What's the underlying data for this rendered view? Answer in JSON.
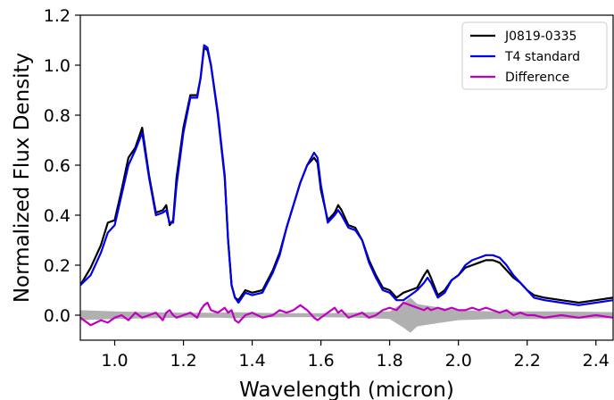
{
  "chart_data": {
    "type": "line",
    "title": "",
    "xlabel": "Wavelength (micron)",
    "ylabel": "Normalized Flux Density",
    "xlim": [
      0.9,
      2.45
    ],
    "ylim": [
      -0.1,
      1.2
    ],
    "xticks": [
      1.0,
      1.2,
      1.4,
      1.6,
      1.8,
      2.0,
      2.2,
      2.4
    ],
    "xtick_labels": [
      "1.0",
      "1.2",
      "1.4",
      "1.6",
      "1.8",
      "2.0",
      "2.2",
      "2.4"
    ],
    "yticks": [
      0.0,
      0.2,
      0.4,
      0.6,
      0.8,
      1.0,
      1.2
    ],
    "ytick_labels": [
      "0.0",
      "0.2",
      "0.4",
      "0.6",
      "0.8",
      "1.0",
      "1.2"
    ],
    "grid": false,
    "legend_position": "top-right",
    "series": [
      {
        "name": "J0819-0335",
        "color": "#000000",
        "x": [
          0.9,
          0.93,
          0.96,
          0.98,
          1.0,
          1.02,
          1.04,
          1.06,
          1.08,
          1.1,
          1.12,
          1.14,
          1.15,
          1.16,
          1.17,
          1.18,
          1.2,
          1.22,
          1.24,
          1.25,
          1.26,
          1.27,
          1.28,
          1.3,
          1.32,
          1.33,
          1.34,
          1.35,
          1.36,
          1.38,
          1.4,
          1.43,
          1.46,
          1.48,
          1.5,
          1.52,
          1.54,
          1.56,
          1.58,
          1.59,
          1.6,
          1.62,
          1.64,
          1.65,
          1.66,
          1.68,
          1.7,
          1.72,
          1.74,
          1.76,
          1.78,
          1.8,
          1.82,
          1.84,
          1.86,
          1.88,
          1.9,
          1.91,
          1.92,
          1.94,
          1.96,
          1.98,
          2.0,
          2.02,
          2.04,
          2.06,
          2.08,
          2.1,
          2.12,
          2.14,
          2.16,
          2.18,
          2.2,
          2.22,
          2.25,
          2.3,
          2.35,
          2.4,
          2.45
        ],
        "y": [
          0.12,
          0.19,
          0.28,
          0.37,
          0.38,
          0.5,
          0.63,
          0.67,
          0.75,
          0.56,
          0.41,
          0.42,
          0.44,
          0.36,
          0.38,
          0.55,
          0.75,
          0.88,
          0.88,
          0.95,
          1.07,
          1.06,
          1.0,
          0.8,
          0.55,
          0.3,
          0.12,
          0.07,
          0.06,
          0.1,
          0.09,
          0.1,
          0.18,
          0.25,
          0.35,
          0.44,
          0.53,
          0.6,
          0.63,
          0.61,
          0.5,
          0.38,
          0.41,
          0.44,
          0.42,
          0.36,
          0.35,
          0.3,
          0.22,
          0.16,
          0.11,
          0.1,
          0.07,
          0.09,
          0.1,
          0.11,
          0.16,
          0.18,
          0.15,
          0.08,
          0.1,
          0.14,
          0.16,
          0.19,
          0.2,
          0.21,
          0.22,
          0.22,
          0.21,
          0.18,
          0.15,
          0.13,
          0.1,
          0.08,
          0.07,
          0.06,
          0.05,
          0.06,
          0.07
        ]
      },
      {
        "name": "T4 standard",
        "color": "#0000ee",
        "x": [
          0.9,
          0.93,
          0.96,
          0.98,
          1.0,
          1.02,
          1.04,
          1.06,
          1.08,
          1.1,
          1.12,
          1.14,
          1.15,
          1.16,
          1.17,
          1.18,
          1.2,
          1.22,
          1.24,
          1.25,
          1.26,
          1.27,
          1.28,
          1.3,
          1.32,
          1.33,
          1.34,
          1.35,
          1.36,
          1.38,
          1.4,
          1.43,
          1.46,
          1.48,
          1.5,
          1.52,
          1.54,
          1.56,
          1.58,
          1.59,
          1.6,
          1.62,
          1.64,
          1.65,
          1.66,
          1.68,
          1.7,
          1.72,
          1.74,
          1.76,
          1.78,
          1.8,
          1.82,
          1.84,
          1.86,
          1.88,
          1.9,
          1.91,
          1.92,
          1.94,
          1.96,
          1.98,
          2.0,
          2.02,
          2.04,
          2.06,
          2.08,
          2.1,
          2.12,
          2.14,
          2.16,
          2.18,
          2.2,
          2.22,
          2.25,
          2.3,
          2.35,
          2.4,
          2.45
        ],
        "y": [
          0.12,
          0.16,
          0.25,
          0.33,
          0.36,
          0.48,
          0.6,
          0.66,
          0.73,
          0.55,
          0.4,
          0.41,
          0.42,
          0.37,
          0.37,
          0.52,
          0.73,
          0.87,
          0.87,
          0.95,
          1.08,
          1.07,
          1.0,
          0.81,
          0.56,
          0.3,
          0.12,
          0.07,
          0.05,
          0.09,
          0.08,
          0.09,
          0.17,
          0.24,
          0.35,
          0.44,
          0.53,
          0.6,
          0.65,
          0.63,
          0.52,
          0.37,
          0.4,
          0.42,
          0.4,
          0.35,
          0.34,
          0.3,
          0.21,
          0.15,
          0.1,
          0.09,
          0.06,
          0.06,
          0.08,
          0.1,
          0.13,
          0.15,
          0.13,
          0.07,
          0.09,
          0.14,
          0.16,
          0.2,
          0.22,
          0.23,
          0.24,
          0.24,
          0.23,
          0.2,
          0.16,
          0.13,
          0.1,
          0.07,
          0.06,
          0.05,
          0.04,
          0.05,
          0.06
        ]
      },
      {
        "name": "Difference",
        "color": "#c000c0",
        "x": [
          0.9,
          0.93,
          0.96,
          0.98,
          1.0,
          1.02,
          1.04,
          1.06,
          1.08,
          1.1,
          1.12,
          1.14,
          1.15,
          1.16,
          1.17,
          1.18,
          1.2,
          1.22,
          1.24,
          1.25,
          1.26,
          1.27,
          1.28,
          1.3,
          1.32,
          1.33,
          1.34,
          1.35,
          1.36,
          1.38,
          1.4,
          1.43,
          1.46,
          1.48,
          1.5,
          1.52,
          1.54,
          1.56,
          1.58,
          1.59,
          1.6,
          1.62,
          1.64,
          1.65,
          1.66,
          1.68,
          1.7,
          1.72,
          1.74,
          1.76,
          1.78,
          1.8,
          1.82,
          1.84,
          1.86,
          1.88,
          1.9,
          1.91,
          1.92,
          1.94,
          1.96,
          1.98,
          2.0,
          2.02,
          2.04,
          2.06,
          2.08,
          2.1,
          2.12,
          2.14,
          2.16,
          2.18,
          2.2,
          2.22,
          2.25,
          2.3,
          2.35,
          2.4,
          2.45
        ],
        "y": [
          -0.01,
          -0.04,
          -0.02,
          -0.03,
          -0.01,
          0.0,
          -0.02,
          0.01,
          -0.01,
          0.0,
          0.01,
          -0.02,
          0.01,
          0.02,
          0.0,
          -0.01,
          0.0,
          0.01,
          -0.01,
          0.02,
          0.04,
          0.05,
          0.02,
          0.01,
          0.03,
          0.01,
          0.02,
          -0.02,
          -0.03,
          0.0,
          0.01,
          -0.01,
          0.0,
          0.02,
          0.01,
          0.02,
          0.04,
          0.02,
          -0.01,
          -0.02,
          -0.01,
          0.01,
          0.03,
          0.01,
          0.02,
          -0.01,
          0.0,
          0.01,
          -0.01,
          0.0,
          0.02,
          0.03,
          0.02,
          0.05,
          0.04,
          0.03,
          0.02,
          0.03,
          0.02,
          0.03,
          0.02,
          0.03,
          0.02,
          0.02,
          0.03,
          0.02,
          0.03,
          0.02,
          0.01,
          0.02,
          0.0,
          0.01,
          0.0,
          0.0,
          -0.01,
          0.0,
          -0.01,
          0.0,
          -0.01
        ]
      }
    ],
    "uncertainty_band": {
      "color": "#b0b0b0",
      "x": [
        0.9,
        1.0,
        1.1,
        1.2,
        1.3,
        1.35,
        1.4,
        1.5,
        1.6,
        1.7,
        1.8,
        1.84,
        1.86,
        1.88,
        1.9,
        1.95,
        2.0,
        2.1,
        2.2,
        2.3,
        2.45
      ],
      "upper": [
        0.02,
        0.015,
        0.012,
        0.01,
        0.01,
        0.012,
        0.01,
        0.008,
        0.008,
        0.01,
        0.015,
        0.05,
        0.07,
        0.045,
        0.04,
        0.03,
        0.02,
        0.015,
        0.015,
        0.015,
        0.012
      ],
      "lower": [
        -0.02,
        -0.015,
        -0.012,
        -0.01,
        -0.01,
        -0.012,
        -0.01,
        -0.008,
        -0.008,
        -0.01,
        -0.015,
        -0.05,
        -0.07,
        -0.045,
        -0.04,
        -0.03,
        -0.02,
        -0.015,
        -0.015,
        -0.015,
        -0.012
      ]
    }
  }
}
